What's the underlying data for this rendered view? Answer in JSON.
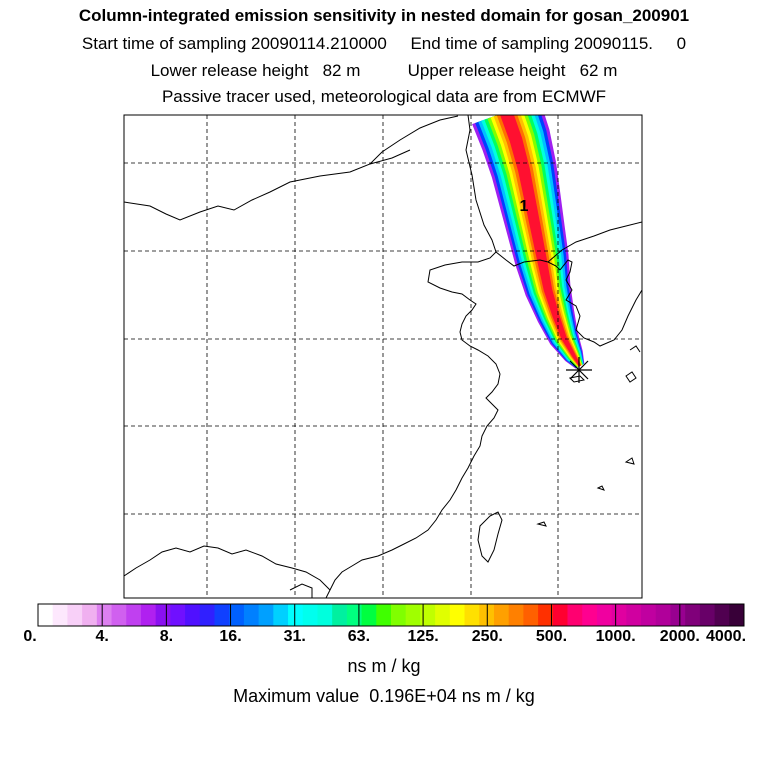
{
  "titles": {
    "line1": "Column-integrated emission sensitivity in nested domain for gosan_200901",
    "line2": "Start time of sampling 20090114.210000     End time of sampling 20090115.     0",
    "line3": "Lower release height   82 m          Upper release height   62 m",
    "line4": "Passive tracer used, meteorological data are from ECMWF"
  },
  "map": {
    "time_label": "1",
    "receptor_symbol": "star",
    "plume_colors": [
      "#a020f0",
      "#0040ff",
      "#00c0ff",
      "#00ffe0",
      "#00ff60",
      "#80ff00",
      "#ffff00",
      "#ffc000",
      "#ff7000",
      "#ff1030"
    ]
  },
  "colorbar": {
    "labels": [
      "0.",
      "4.",
      "8.",
      "16.",
      "31.",
      "63.",
      "125.",
      "250.",
      "500.",
      "1000.",
      "2000.",
      "4000."
    ],
    "colors": [
      "#ffffff",
      "#fde8fd",
      "#f8d0f8",
      "#f0b0f0",
      "#dd80f0",
      "#d060ef",
      "#c040f0",
      "#b020f0",
      "#8a10f0",
      "#7010ff",
      "#5010ff",
      "#3020ff",
      "#1040ff",
      "#0060ff",
      "#0080ff",
      "#00a0ff",
      "#00d0ff",
      "#00ffff",
      "#00ffee",
      "#00ffdd",
      "#00f0a0",
      "#00ff80",
      "#00ff40",
      "#40ff00",
      "#80ff00",
      "#a0ff00",
      "#c0ff00",
      "#e0ff00",
      "#ffff00",
      "#ffe000",
      "#ffc000",
      "#ffa000",
      "#ff8000",
      "#ff6000",
      "#ff3000",
      "#ff0030",
      "#ff0070",
      "#ff0090",
      "#f000a0",
      "#e000a0",
      "#d000a0",
      "#c000a0",
      "#b0009a",
      "#980090",
      "#80007a",
      "#680068",
      "#500050",
      "#380038"
    ],
    "units": "ns m / kg"
  },
  "max_value": "Maximum value  0.196E+04 ns m / kg"
}
